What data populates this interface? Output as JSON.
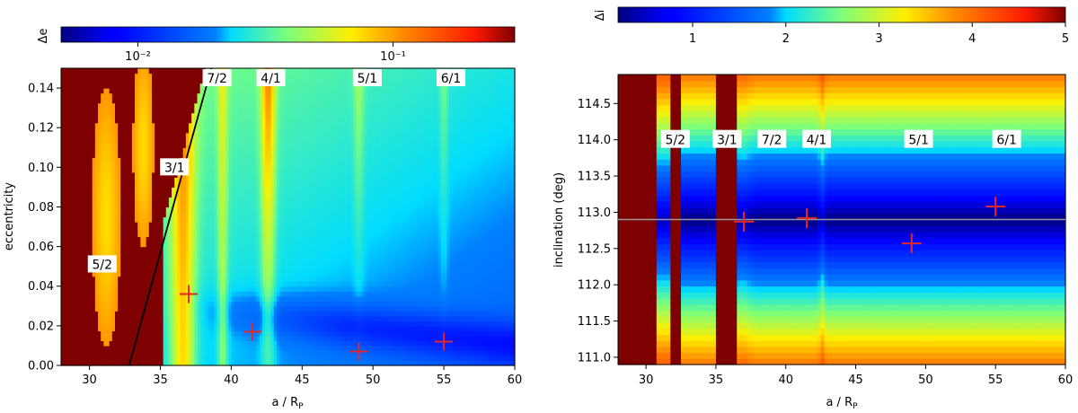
{
  "chart_data": [
    {
      "type": "heatmap",
      "panel": "left",
      "xlabel": "a / R",
      "xlabel_sub": "P",
      "ylabel": "eccentricity",
      "xlim": [
        28,
        60
      ],
      "ylim": [
        0,
        0.15
      ],
      "xticks": [
        30,
        35,
        40,
        45,
        50,
        55,
        60
      ],
      "yticks": [
        0.0,
        0.02,
        0.04,
        0.06,
        0.08,
        0.1,
        0.12,
        0.14
      ],
      "ytick_labels": [
        "0.00",
        "0.02",
        "0.04",
        "0.06",
        "0.08",
        "0.10",
        "0.12",
        "0.14"
      ],
      "colorbar": {
        "label": "Δe",
        "scale": "log",
        "range": [
          0.005,
          0.3
        ],
        "ticks": [
          0.01,
          0.1
        ],
        "tick_labels": [
          "10⁻²",
          "10⁻¹"
        ],
        "colormap": "jet"
      },
      "resonances": [
        {
          "label": "5/2",
          "x": 30.9,
          "y": 0.051
        },
        {
          "label": "3/1",
          "x": 36.0,
          "y": 0.1
        },
        {
          "label": "7/2",
          "x": 39.0,
          "y": 0.145
        },
        {
          "label": "4/1",
          "x": 42.8,
          "y": 0.145
        },
        {
          "label": "5/1",
          "x": 49.6,
          "y": 0.145
        },
        {
          "label": "6/1",
          "x": 55.5,
          "y": 0.145
        }
      ],
      "markers": [
        {
          "x": 37.0,
          "y": 0.036
        },
        {
          "x": 41.5,
          "y": 0.017
        },
        {
          "x": 49.0,
          "y": 0.007
        },
        {
          "x": 55.0,
          "y": 0.012
        }
      ],
      "stability_line": {
        "x": [
          32.8,
          38.6
        ],
        "y": [
          0.0,
          0.15
        ]
      }
    },
    {
      "type": "heatmap",
      "panel": "right",
      "xlabel": "a / R",
      "xlabel_sub": "P",
      "ylabel": "inclination (deg)",
      "xlim": [
        28,
        60
      ],
      "ylim": [
        110.9,
        114.9
      ],
      "xticks": [
        30,
        35,
        40,
        45,
        50,
        55,
        60
      ],
      "yticks": [
        111.0,
        111.5,
        112.0,
        112.5,
        113.0,
        113.5,
        114.0,
        114.5
      ],
      "ytick_labels": [
        "111.0",
        "111.5",
        "112.0",
        "112.5",
        "113.0",
        "113.5",
        "114.0",
        "114.5"
      ],
      "colorbar": {
        "label": "Δi",
        "scale": "linear",
        "range": [
          0.2,
          5
        ],
        "ticks": [
          1,
          2,
          3,
          4,
          5
        ],
        "tick_labels": [
          "1",
          "2",
          "3",
          "4",
          "5"
        ],
        "colormap": "jet"
      },
      "resonances": [
        {
          "label": "5/2",
          "x": 32.1,
          "y": 114.0
        },
        {
          "label": "3/1",
          "x": 35.8,
          "y": 114.0
        },
        {
          "label": "7/2",
          "x": 39.0,
          "y": 114.0
        },
        {
          "label": "4/1",
          "x": 42.2,
          "y": 114.0
        },
        {
          "label": "5/1",
          "x": 49.5,
          "y": 114.0
        },
        {
          "label": "6/1",
          "x": 55.8,
          "y": 114.0
        }
      ],
      "markers": [
        {
          "x": 37.0,
          "y": 112.87
        },
        {
          "x": 41.5,
          "y": 112.92
        },
        {
          "x": 49.0,
          "y": 112.57
        },
        {
          "x": 55.0,
          "y": 113.08
        }
      ],
      "reference_line": {
        "y": 112.9
      }
    }
  ],
  "colors": {
    "marker": "#e8262a",
    "stability_line": "#000000",
    "reference_line": "#999999",
    "unstable": "#7f0000"
  }
}
